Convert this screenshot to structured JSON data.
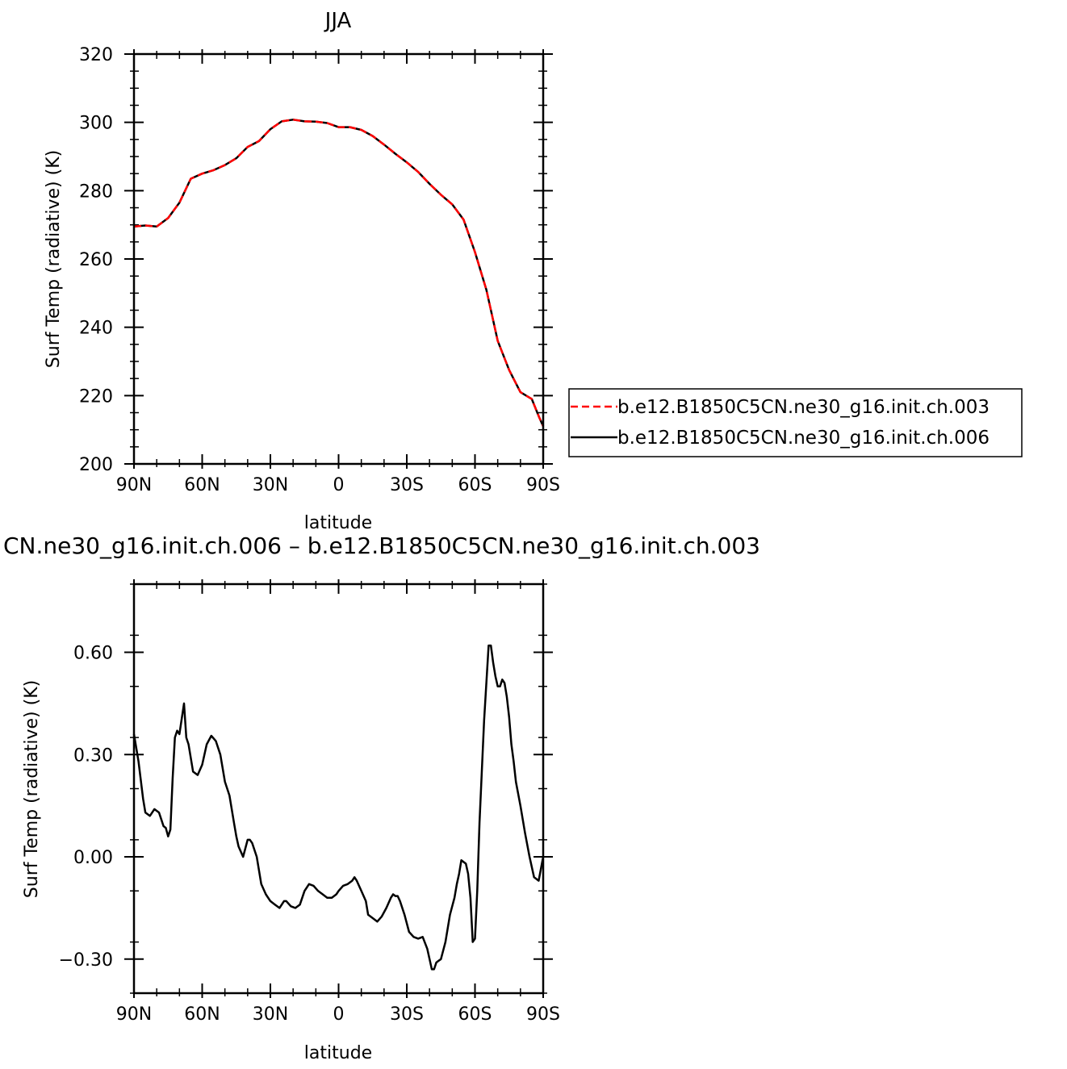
{
  "chart_data": [
    {
      "type": "line",
      "title": "JJA",
      "xlabel": "latitude",
      "ylabel": "Surf Temp (radiative) (K)",
      "xlim": [
        -90,
        90
      ],
      "ylim": [
        200,
        320
      ],
      "x_ticks": [
        -90,
        -60,
        -30,
        0,
        30,
        60,
        90
      ],
      "x_tick_labels": [
        "90N",
        "60N",
        "30N",
        "0",
        "30S",
        "60S",
        "90S"
      ],
      "y_ticks": [
        200,
        220,
        240,
        260,
        280,
        300,
        320
      ],
      "y_tick_labels": [
        "200",
        "220",
        "240",
        "260",
        "280",
        "300",
        "320"
      ],
      "legend": "right",
      "series": [
        {
          "name": "b.e12.B1850C5CN.ne30_g16.init.ch.003",
          "color": "#ff0000",
          "dash": "dashed",
          "x": [
            -90,
            -85,
            -80,
            -75,
            -70,
            -65,
            -60,
            -55,
            -50,
            -45,
            -40,
            -35,
            -30,
            -25,
            -20,
            -15,
            -10,
            -5,
            0,
            5,
            10,
            15,
            20,
            25,
            30,
            35,
            40,
            45,
            50,
            55,
            60,
            65,
            70,
            75,
            80,
            85,
            88,
            90
          ],
          "y": [
            269.5,
            269.8,
            269.5,
            272,
            276.5,
            283.5,
            285,
            286,
            287.5,
            289.5,
            292.8,
            294.5,
            298,
            300.3,
            300.8,
            300.3,
            300.2,
            299.8,
            298.6,
            298.6,
            297.8,
            296,
            293.5,
            290.8,
            288.3,
            285.5,
            282,
            278.8,
            276,
            271.5,
            262,
            251,
            236,
            227.5,
            221,
            219,
            214,
            211
          ]
        },
        {
          "name": "b.e12.B1850C5CN.ne30_g16.init.ch.006",
          "color": "#000000",
          "dash": "solid",
          "x": [
            -90,
            -85,
            -80,
            -75,
            -70,
            -65,
            -60,
            -55,
            -50,
            -45,
            -40,
            -35,
            -30,
            -25,
            -20,
            -15,
            -10,
            -5,
            0,
            5,
            10,
            15,
            20,
            25,
            30,
            35,
            40,
            45,
            50,
            55,
            60,
            65,
            70,
            75,
            80,
            85,
            88,
            90
          ],
          "y": [
            269.5,
            269.8,
            269.5,
            272,
            276.5,
            283.5,
            285,
            286,
            287.5,
            289.5,
            292.8,
            294.5,
            298,
            300.3,
            300.8,
            300.3,
            300.2,
            299.8,
            298.6,
            298.6,
            297.8,
            296,
            293.5,
            290.8,
            288.3,
            285.5,
            282,
            278.8,
            276,
            271.5,
            262,
            251,
            236,
            227.5,
            221,
            219,
            214,
            211
          ]
        }
      ]
    },
    {
      "type": "line",
      "title": "CN.ne30_g16.init.ch.006 – b.e12.B1850C5CN.ne30_g16.init.ch.003",
      "xlabel": "latitude",
      "ylabel": "Surf Temp (radiative) (K)",
      "xlim": [
        -90,
        90
      ],
      "ylim": [
        -0.4,
        0.8
      ],
      "x_ticks": [
        -90,
        -60,
        -30,
        0,
        30,
        60,
        90
      ],
      "x_tick_labels": [
        "90N",
        "60N",
        "30N",
        "0",
        "30S",
        "60S",
        "90S"
      ],
      "y_ticks": [
        -0.3,
        0,
        0.3,
        0.6
      ],
      "y_tick_labels": [
        "−0.30",
        "0.00",
        "0.30",
        "0.60"
      ],
      "series": [
        {
          "name": "",
          "color": "#000000",
          "dash": "solid",
          "x": [
            -90,
            -88,
            -86,
            -85,
            -83,
            -81,
            -79,
            -78,
            -77,
            -76,
            -75,
            -74,
            -73,
            -72,
            -71,
            -70,
            -68,
            -67,
            -66,
            -64,
            -62,
            -60,
            -58,
            -56,
            -54,
            -52,
            -50,
            -48,
            -46,
            -45,
            -44,
            -42,
            -40,
            -39,
            -38,
            -36,
            -34,
            -32,
            -30,
            -28,
            -26,
            -24,
            -23,
            -21,
            -19,
            -17,
            -15,
            -13,
            -11,
            -9,
            -7,
            -5,
            -3,
            -1,
            0,
            2,
            4,
            6,
            7,
            8,
            10,
            12,
            13,
            15,
            17,
            19,
            21,
            23,
            24,
            25,
            26,
            27,
            29,
            31,
            33,
            35,
            37,
            39,
            41,
            42,
            43,
            44,
            45,
            47,
            49,
            51,
            52,
            53,
            54,
            56,
            57,
            58,
            59,
            60,
            61,
            62,
            64,
            66,
            67,
            68,
            69,
            70,
            71,
            72,
            73,
            74,
            75,
            76,
            77,
            78,
            80,
            82,
            84,
            86,
            88,
            90
          ],
          "y": [
            0.36,
            0.28,
            0.17,
            0.13,
            0.12,
            0.14,
            0.13,
            0.11,
            0.09,
            0.085,
            0.06,
            0.08,
            0.23,
            0.35,
            0.37,
            0.36,
            0.45,
            0.35,
            0.33,
            0.25,
            0.24,
            0.27,
            0.33,
            0.355,
            0.34,
            0.3,
            0.22,
            0.18,
            0.1,
            0.06,
            0.03,
            0.0,
            0.05,
            0.05,
            0.04,
            0.0,
            -0.08,
            -0.11,
            -0.13,
            -0.14,
            -0.15,
            -0.13,
            -0.13,
            -0.145,
            -0.15,
            -0.14,
            -0.1,
            -0.08,
            -0.085,
            -0.1,
            -0.11,
            -0.12,
            -0.12,
            -0.11,
            -0.1,
            -0.085,
            -0.08,
            -0.07,
            -0.06,
            -0.07,
            -0.1,
            -0.13,
            -0.17,
            -0.18,
            -0.19,
            -0.175,
            -0.15,
            -0.12,
            -0.11,
            -0.115,
            -0.115,
            -0.13,
            -0.17,
            -0.22,
            -0.235,
            -0.24,
            -0.235,
            -0.27,
            -0.33,
            -0.33,
            -0.31,
            -0.305,
            -0.3,
            -0.25,
            -0.17,
            -0.12,
            -0.08,
            -0.05,
            -0.01,
            -0.02,
            -0.05,
            -0.12,
            -0.25,
            -0.24,
            -0.1,
            0.1,
            0.4,
            0.62,
            0.62,
            0.57,
            0.53,
            0.5,
            0.5,
            0.52,
            0.51,
            0.47,
            0.41,
            0.33,
            0.28,
            0.22,
            0.15,
            0.07,
            -0.0,
            -0.06,
            -0.07,
            0.0
          ]
        }
      ]
    }
  ]
}
